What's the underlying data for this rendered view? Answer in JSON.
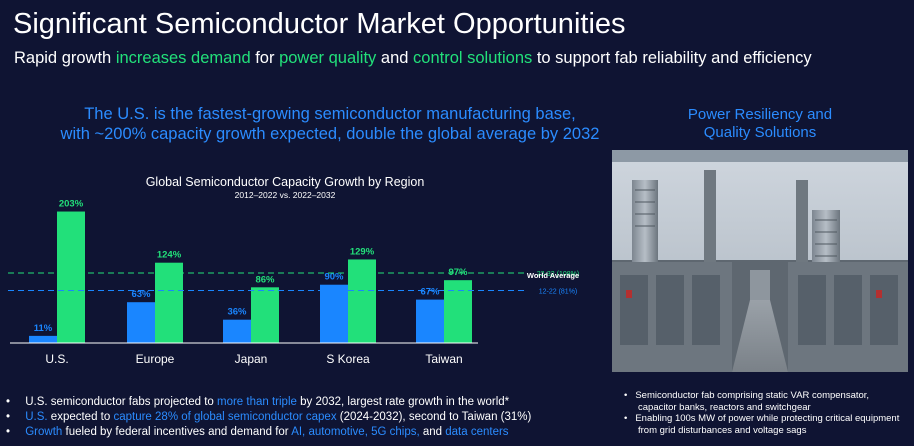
{
  "slide": {
    "title": "Significant Semiconductor Market Opportunities",
    "subtitle": {
      "t1": "Rapid growth ",
      "t2": "increases demand",
      "t3": " for ",
      "t4": "power quality",
      "t5": " and ",
      "t6": "control solutions",
      "t7": " to support fab reliability and efficiency"
    },
    "headline": {
      "line1": "The U.S. is the fastest-growing semiconductor manufacturing base,",
      "line2": "with ~200% capacity growth expected, double the global average by 2032"
    },
    "photo_title": {
      "line1": "Power Resiliency and",
      "line2": "Quality Solutions"
    },
    "photo_bullets": [
      "Semiconductor fab comprising static VAR compensator, capacitor banks, reactors and switchgear",
      "Enabling 100s MW of power while protecting critical equipment from grid disturbances and voltage sags"
    ],
    "bullets": {
      "b1": {
        "t1": "U.S. semiconductor fabs projected to ",
        "t2": "more than triple",
        "t3": " by 2032, largest rate growth in the world*"
      },
      "b2": {
        "t1": "U.S.",
        "t2": " expected to ",
        "t3": "capture 28% of global semiconductor capex",
        "t4": " (2024-2032), second to Taiwan (31%)"
      },
      "b3": {
        "t1": "Growth",
        "t2": " fueled by federal incentives and demand for ",
        "t3": "AI, automotive, 5G chips,",
        "t4": " and ",
        "t5": "data centers"
      }
    }
  },
  "colors": {
    "background": "#0f1433",
    "blue": "#1a86ff",
    "green": "#22e07a",
    "axis": "#ffffff"
  },
  "chart_data": {
    "type": "bar",
    "title": "Global Semiconductor Capacity Growth by Region",
    "subtitle": "2012–2022 vs. 2022–2032",
    "categories": [
      "U.S.",
      "Europe",
      "Japan",
      "S Korea",
      "Taiwan"
    ],
    "series": [
      {
        "name": "12-22",
        "color": "#1a86ff",
        "values": [
          11,
          63,
          36,
          90,
          67
        ],
        "labels": [
          "11%",
          "63%",
          "36%",
          "90%",
          "67%"
        ]
      },
      {
        "name": "22-32",
        "color": "#22e07a",
        "values": [
          203,
          124,
          86,
          129,
          97
        ],
        "labels": [
          "203%",
          "124%",
          "86%",
          "129%",
          "97%"
        ]
      }
    ],
    "reference_lines": [
      {
        "label": "22-32 (108%)",
        "value": 108,
        "color": "#22e07a"
      },
      {
        "label": "12-22 (81%)",
        "value": 81,
        "color": "#1a86ff"
      }
    ],
    "reference_title": "World Average",
    "ylim": [
      0,
      210
    ],
    "grid": false
  }
}
